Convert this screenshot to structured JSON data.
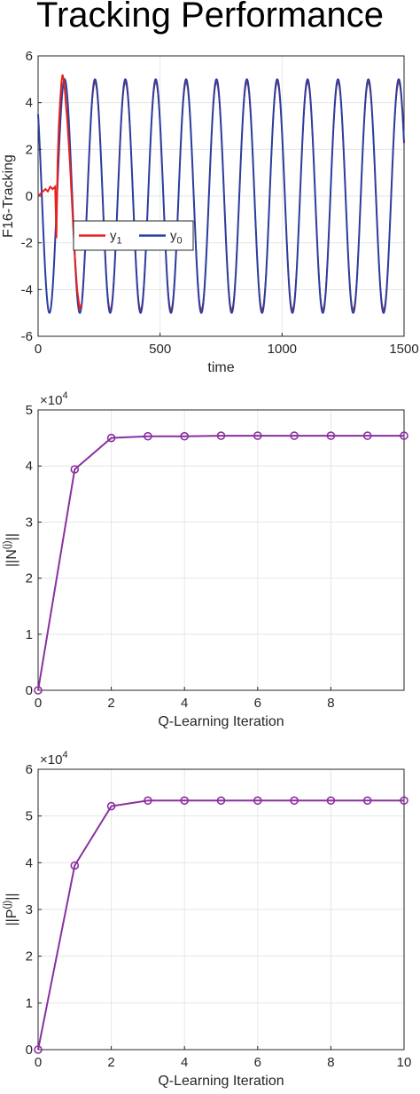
{
  "figure_title": "Tracking Performance",
  "colors": {
    "series_red": "#e8201f",
    "series_blue": "#2a3e9e",
    "series_purple": "#8b2fa0",
    "axis": "#262626",
    "grid": "#e6e6e6"
  },
  "chart_data": [
    {
      "type": "line",
      "title": "",
      "xlabel": "time",
      "ylabel": "F16-Tracking",
      "xlim": [
        0,
        1500
      ],
      "ylim": [
        -6,
        6
      ],
      "xticks": [
        0,
        500,
        1000,
        1500
      ],
      "yticks": [
        -6,
        -4,
        -2,
        0,
        2,
        4,
        6
      ],
      "grid": true,
      "legend": {
        "placement": "left-center",
        "orientation": "horizontal",
        "entries": [
          {
            "base": "y",
            "sub": "1"
          },
          {
            "base": "y",
            "sub": "0"
          }
        ]
      },
      "series": [
        {
          "name": "y1",
          "color": "#e8201f",
          "description": "red trajectory: near 0 for early time, transient spikes near t≈80–110, then tracks the reference sinusoid",
          "x": [
            0,
            10,
            20,
            30,
            40,
            50,
            60,
            70,
            75,
            80,
            85,
            90,
            95,
            100,
            105,
            110,
            115,
            120,
            130,
            140,
            150,
            160,
            170,
            180
          ],
          "values": [
            0.0,
            0.1,
            0.2,
            0.3,
            0.2,
            0.4,
            0.3,
            0.4,
            -1.8,
            1.5,
            3.0,
            4.0,
            4.8,
            5.2,
            5.0,
            4.5,
            3.8,
            3.2,
            1.5,
            -0.5,
            -2.5,
            -4.0,
            -4.8,
            -4.6
          ]
        },
        {
          "name": "y0",
          "color": "#2a3e9e",
          "description": "reference sinusoid y0(t) = 5*cos(2*pi*t/124 + phase), starting at ~3.5",
          "amplitude": 5,
          "period": 124.5,
          "initial_value": 3.5
        }
      ]
    },
    {
      "type": "line",
      "title": "",
      "xlabel": "Q-Learning Iteration",
      "ylabel": "||N(j)||",
      "exponent_label": "×10^4",
      "xlim": [
        0,
        10
      ],
      "ylim": [
        0,
        5
      ],
      "xticks": [
        0,
        2,
        4,
        6,
        8
      ],
      "yticks": [
        0,
        1,
        2,
        3,
        4,
        5
      ],
      "grid": true,
      "marker": "circle",
      "series": [
        {
          "color": "#8b2fa0",
          "x": [
            0,
            1,
            2,
            3,
            4,
            5,
            6,
            7,
            8,
            9,
            10
          ],
          "values": [
            0,
            3.94,
            4.5,
            4.53,
            4.53,
            4.54,
            4.54,
            4.54,
            4.54,
            4.54,
            4.54
          ]
        }
      ]
    },
    {
      "type": "line",
      "title": "",
      "xlabel": "Q-Learning Iteration",
      "ylabel": "||P(j)||",
      "exponent_label": "×10^4",
      "xlim": [
        0,
        10
      ],
      "ylim": [
        0,
        6
      ],
      "xticks": [
        0,
        2,
        4,
        6,
        8,
        10
      ],
      "yticks": [
        0,
        1,
        2,
        3,
        4,
        5,
        6
      ],
      "grid": true,
      "marker": "circle",
      "series": [
        {
          "color": "#8b2fa0",
          "x": [
            0,
            1,
            2,
            3,
            4,
            5,
            6,
            7,
            8,
            9,
            10
          ],
          "values": [
            0,
            3.94,
            5.21,
            5.33,
            5.33,
            5.33,
            5.33,
            5.33,
            5.33,
            5.33,
            5.33
          ]
        }
      ]
    }
  ]
}
